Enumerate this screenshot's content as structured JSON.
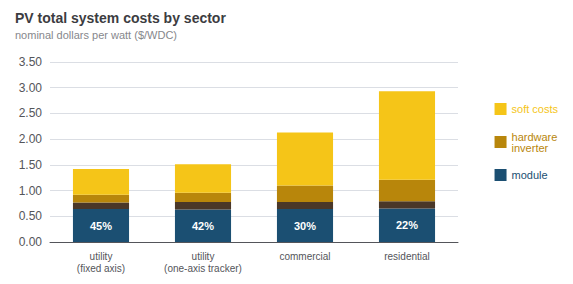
{
  "chart_data": {
    "type": "bar",
    "stacked": true,
    "title": "PV total system costs by sector",
    "subtitle": "nominal dollars per watt ($/WDC)",
    "categories": [
      "utility\n(fixed axis)",
      "utility\n(one-axis tracker)",
      "commercial",
      "residential"
    ],
    "series": [
      {
        "name": "module",
        "color": "#1b4f72",
        "values": [
          0.64,
          0.63,
          0.64,
          0.65
        ]
      },
      {
        "color": "#4a3728",
        "values": [
          0.13,
          0.15,
          0.14,
          0.14
        ]
      },
      {
        "name": "hardware\ninverter",
        "color": "#b8860b",
        "values": [
          0.15,
          0.18,
          0.32,
          0.42
        ]
      },
      {
        "name": "soft costs",
        "color": "#f5c518",
        "values": [
          0.5,
          0.55,
          1.03,
          1.72
        ]
      }
    ],
    "annotations": [
      "45%",
      "42%",
      "30%",
      "22%"
    ],
    "ylim": [
      0,
      3.5
    ],
    "yticks": [
      {
        "value": 0,
        "label": "0.00"
      },
      {
        "value": 0.5,
        "label": "0.50"
      },
      {
        "value": 1,
        "label": "1.00"
      },
      {
        "value": 1.5,
        "label": "1.50"
      },
      {
        "value": 2,
        "label": "2.00"
      },
      {
        "value": 2.5,
        "label": "2.50"
      },
      {
        "value": 3,
        "label": "3.00"
      },
      {
        "value": 3.5,
        "label": "3.50"
      }
    ],
    "grid": true,
    "legend": "right"
  }
}
